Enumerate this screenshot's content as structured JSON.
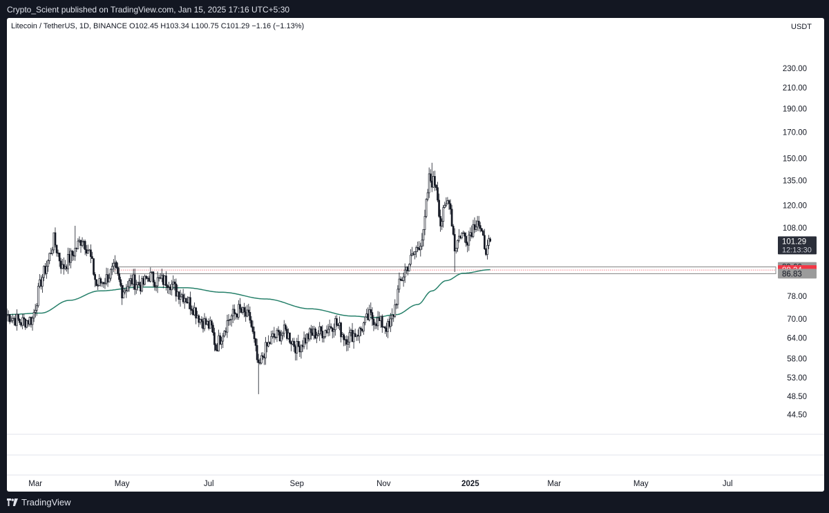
{
  "header": {
    "publisher_line": "Crypto_Scient published on TradingView.com, Jan 15, 2025 17:16 UTC+5:30"
  },
  "legend": {
    "text": "Litecoin / TetherUS, 1D, BINANCE  O102.45  H103.34  L100.75  C101.29  −1.16 (−1.13%)"
  },
  "currency": "USDT",
  "footer": {
    "brand": "TradingView"
  },
  "colors": {
    "moving_average": "#26806a",
    "support_zone": "#808080",
    "price_line": "#f23645",
    "candle": "#131722",
    "last_price_bg": "#2a2e39",
    "label_gray": "#9b9b9b",
    "label_red": "#f23645"
  },
  "chart_data": {
    "type": "candlestick",
    "title": "Litecoin / TetherUS, 1D, BINANCE",
    "ylabel": "USDT",
    "y_scale": "log",
    "ylim": [
      40.5,
      265
    ],
    "xlim": [
      "2024-02-10",
      "2025-07-31"
    ],
    "x_ticks": [
      {
        "date": "2024-03-01",
        "label": "Mar"
      },
      {
        "date": "2024-05-01",
        "label": "May"
      },
      {
        "date": "2024-07-01",
        "label": "Jul"
      },
      {
        "date": "2024-09-01",
        "label": "Sep"
      },
      {
        "date": "2024-11-01",
        "label": "Nov"
      },
      {
        "date": "2025-01-01",
        "label": "2025"
      },
      {
        "date": "2025-03-01",
        "label": "Mar"
      },
      {
        "date": "2025-05-01",
        "label": "May"
      },
      {
        "date": "2025-07-01",
        "label": "Jul"
      }
    ],
    "y_ticks": [
      230,
      210,
      190,
      170,
      150,
      135,
      120,
      108,
      78,
      70,
      64,
      58,
      53,
      48.5,
      44.5
    ],
    "y_tick_labels": [
      "230.00",
      "210.00",
      "190.00",
      "170.00",
      "150.00",
      "135.00",
      "120.00",
      "108.00",
      "78.00",
      "70.00",
      "64.00",
      "58.00",
      "53.00",
      "48.50",
      "44.50"
    ],
    "price_anchors": [
      [
        "2024-02-10",
        71.5
      ],
      [
        "2024-02-20",
        69
      ],
      [
        "2024-02-28",
        70
      ],
      [
        "2024-03-05",
        84
      ],
      [
        "2024-03-10",
        92
      ],
      [
        "2024-03-14",
        102
      ],
      [
        "2024-03-20",
        89
      ],
      [
        "2024-03-27",
        95
      ],
      [
        "2024-04-03",
        103
      ],
      [
        "2024-04-08",
        96
      ],
      [
        "2024-04-13",
        82
      ],
      [
        "2024-04-20",
        85
      ],
      [
        "2024-04-26",
        89
      ],
      [
        "2024-05-01",
        80
      ],
      [
        "2024-05-08",
        84
      ],
      [
        "2024-05-15",
        82
      ],
      [
        "2024-05-20",
        86
      ],
      [
        "2024-05-25",
        84
      ],
      [
        "2024-06-03",
        84
      ],
      [
        "2024-06-08",
        80
      ],
      [
        "2024-06-14",
        78
      ],
      [
        "2024-06-20",
        74
      ],
      [
        "2024-06-25",
        70
      ],
      [
        "2024-07-03",
        67
      ],
      [
        "2024-07-06",
        61
      ],
      [
        "2024-07-15",
        70
      ],
      [
        "2024-07-22",
        73
      ],
      [
        "2024-07-30",
        70
      ],
      [
        "2024-08-05",
        55
      ],
      [
        "2024-08-09",
        60
      ],
      [
        "2024-08-15",
        64
      ],
      [
        "2024-08-24",
        66
      ],
      [
        "2024-09-01",
        61
      ],
      [
        "2024-09-10",
        65
      ],
      [
        "2024-09-20",
        66
      ],
      [
        "2024-09-28",
        69
      ],
      [
        "2024-10-05",
        64
      ],
      [
        "2024-10-15",
        66
      ],
      [
        "2024-10-22",
        71
      ],
      [
        "2024-10-29",
        69
      ],
      [
        "2024-11-05",
        67
      ],
      [
        "2024-11-08",
        72
      ],
      [
        "2024-11-12",
        82
      ],
      [
        "2024-11-16",
        88
      ],
      [
        "2024-11-22",
        95
      ],
      [
        "2024-11-29",
        104
      ],
      [
        "2024-12-03",
        136
      ],
      [
        "2024-12-08",
        133
      ],
      [
        "2024-12-11",
        110
      ],
      [
        "2024-12-17",
        125
      ],
      [
        "2024-12-21",
        98
      ],
      [
        "2024-12-25",
        105
      ],
      [
        "2024-12-30",
        103
      ],
      [
        "2025-01-06",
        113
      ],
      [
        "2025-01-09",
        103
      ],
      [
        "2025-01-13",
        97
      ],
      [
        "2025-01-15",
        101.29
      ]
    ],
    "moving_average": [
      [
        "2024-02-10",
        71.5
      ],
      [
        "2024-03-05",
        72
      ],
      [
        "2024-03-25",
        76.5
      ],
      [
        "2024-04-15",
        80
      ],
      [
        "2024-05-15",
        81.5
      ],
      [
        "2024-06-15",
        81.2
      ],
      [
        "2024-07-10",
        79.5
      ],
      [
        "2024-08-10",
        77
      ],
      [
        "2024-09-10",
        73.5
      ],
      [
        "2024-10-10",
        71
      ],
      [
        "2024-10-25",
        70.5
      ],
      [
        "2024-11-10",
        71.5
      ],
      [
        "2024-11-25",
        75
      ],
      [
        "2024-12-05",
        80
      ],
      [
        "2024-12-15",
        84
      ],
      [
        "2024-12-27",
        87
      ],
      [
        "2025-01-15",
        88.5
      ]
    ],
    "wick_extremes": [
      {
        "date": "2024-08-05",
        "low": 49
      },
      {
        "date": "2024-12-05",
        "high": 147
      },
      {
        "date": "2024-12-21",
        "low": 87.5
      },
      {
        "date": "2024-03-29",
        "high": 109
      }
    ],
    "support_zone": {
      "upper": 89.66,
      "lower": 86.83,
      "start": "2024-04-26",
      "end_label": "extends right"
    },
    "horizontal_line": {
      "value": 88.34,
      "style": "dotted"
    },
    "last_price": 101.29,
    "price_labels": [
      {
        "value": 101.29,
        "text": "101.29",
        "sub": "12:13:30",
        "style": "dark"
      },
      {
        "value": 89.66,
        "text": "89.66",
        "style": "gray"
      },
      {
        "value": 88.34,
        "text": "88.34",
        "style": "red"
      },
      {
        "value": 86.83,
        "text": "86.83",
        "style": "gray"
      }
    ]
  }
}
